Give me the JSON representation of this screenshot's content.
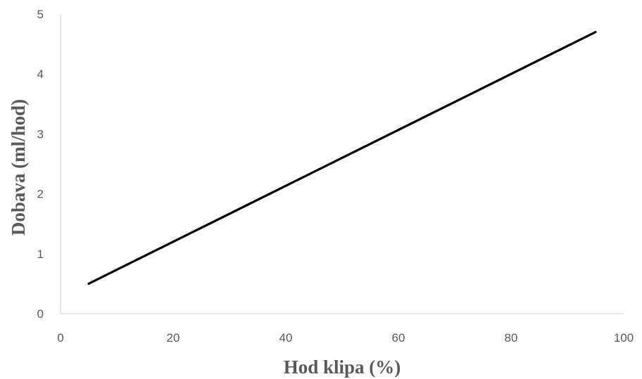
{
  "chart_data": {
    "type": "line",
    "title": "",
    "xlabel": "Hod klipa (%)",
    "ylabel": "Dobava (ml/hod)",
    "xlim": [
      0,
      100
    ],
    "ylim": [
      0,
      5
    ],
    "x_ticks": [
      "0",
      "20",
      "40",
      "60",
      "80",
      "100"
    ],
    "y_ticks": [
      "0",
      "1",
      "2",
      "3",
      "4",
      "5"
    ],
    "grid": false,
    "legend": "none",
    "series": [
      {
        "color": "#000000",
        "x": [
          5,
          95
        ],
        "y": [
          0.5,
          4.7
        ]
      }
    ]
  }
}
